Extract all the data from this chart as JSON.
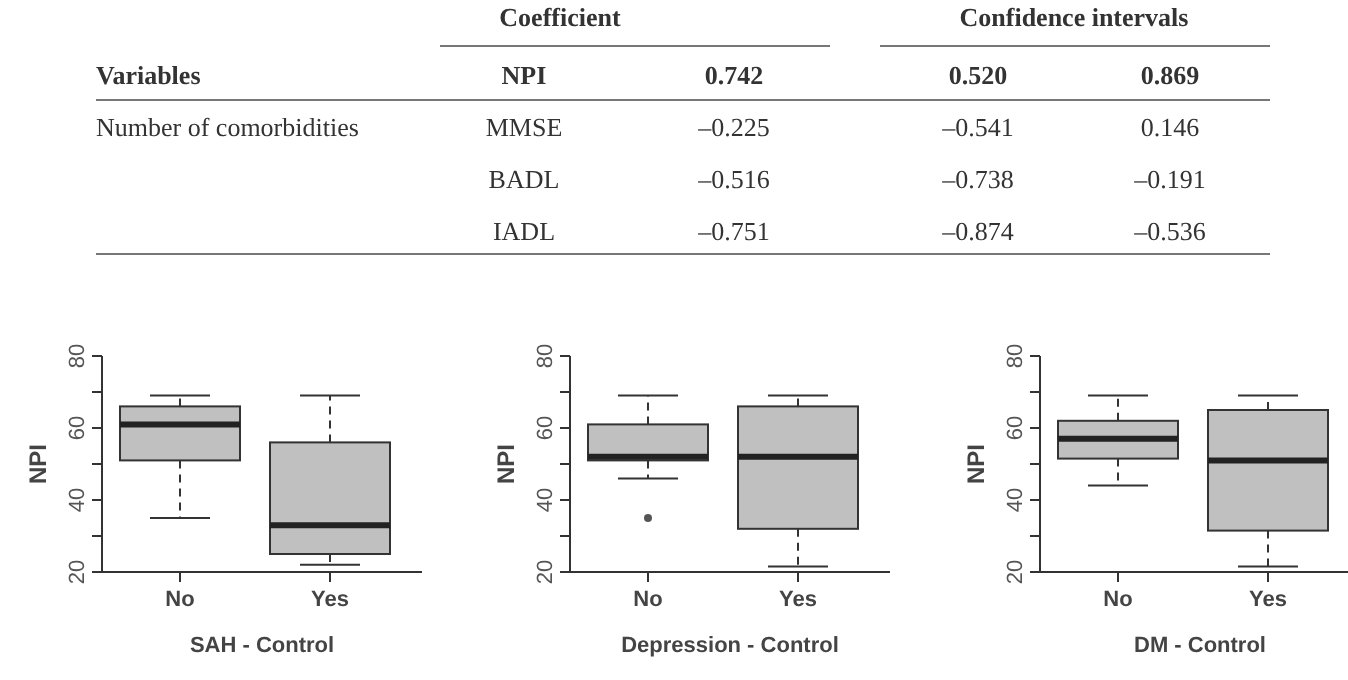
{
  "chart_data": [
    {
      "type": "other",
      "annotations": [
        "Coefficient",
        "Confidence intervals",
        "Variables",
        "NPI",
        "0.742",
        "0.520",
        "0.869",
        "Number of comorbidities",
        "MMSE",
        "–0.225",
        "–0.541",
        "0.146",
        "BADL",
        "–0.516",
        "–0.738",
        "–0.191",
        "IADL",
        "–0.751",
        "–0.874",
        "–0.536"
      ]
    },
    {
      "type": "box",
      "xlabel": "SAH - Control",
      "ylabel": "NPI",
      "categories": [
        "No",
        "Yes"
      ],
      "color": "#c0c0c0",
      "ylim": [
        20,
        80
      ],
      "yticks": [
        20,
        {
          "value": 30,
          "label": null
        },
        40,
        {
          "value": 50,
          "label": null
        },
        60,
        {
          "value": 70,
          "label": null
        },
        80
      ],
      "boxes": [
        {
          "low": 35,
          "q1": 51,
          "median": 61,
          "q3": 66,
          "high": 69
        },
        {
          "low": 22,
          "q1": 25,
          "median": 33,
          "q3": 56,
          "high": 69
        }
      ]
    },
    {
      "type": "box",
      "xlabel": "Depression - Control",
      "ylabel": "NPI",
      "categories": [
        "No",
        "Yes"
      ],
      "color": "#c0c0c0",
      "ylim": [
        20,
        80
      ],
      "yticks": [
        20,
        {
          "value": 30,
          "label": null
        },
        40,
        {
          "value": 50,
          "label": null
        },
        60,
        {
          "value": 70,
          "label": null
        },
        80
      ],
      "boxes": [
        {
          "low": 46,
          "q1": 51,
          "median": 52,
          "q3": 61,
          "high": 69,
          "outliers": [
            35
          ]
        },
        {
          "low": 21.5,
          "q1": 32,
          "median": 52,
          "q3": 66,
          "high": 69
        }
      ]
    },
    {
      "type": "box",
      "xlabel": "DM - Control",
      "ylabel": "NPI",
      "categories": [
        "No",
        "Yes"
      ],
      "color": "#c0c0c0",
      "ylim": [
        20,
        80
      ],
      "yticks": [
        20,
        {
          "value": 30,
          "label": null
        },
        40,
        {
          "value": 50,
          "label": null
        },
        60,
        {
          "value": 70,
          "label": null
        },
        80
      ],
      "boxes": [
        {
          "low": 44,
          "q1": 51.5,
          "median": 57,
          "q3": 62,
          "high": 69
        },
        {
          "low": 21.5,
          "q1": 31.5,
          "median": 51,
          "q3": 65,
          "high": 69
        }
      ]
    }
  ]
}
